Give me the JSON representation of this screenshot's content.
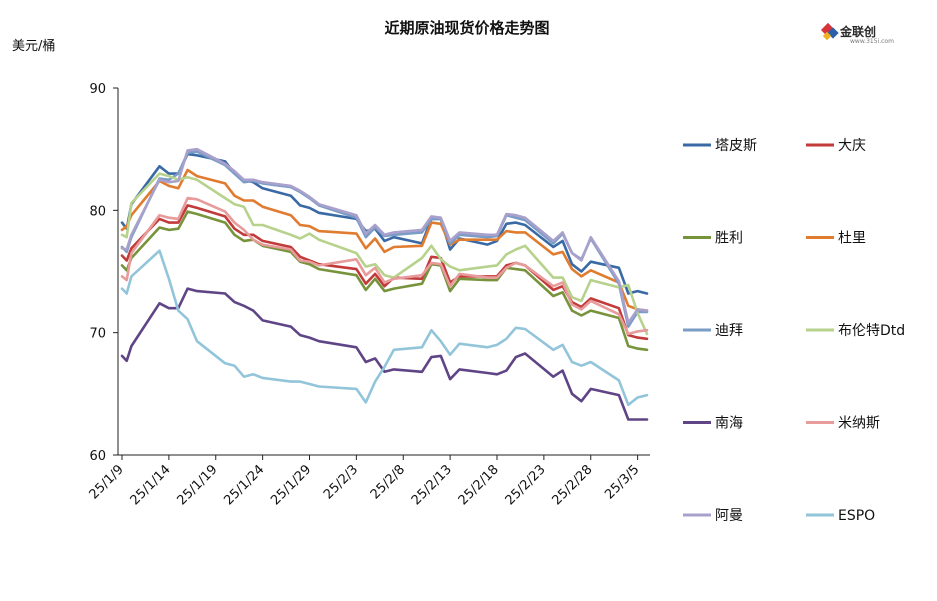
{
  "chart_data": {
    "type": "line",
    "title": "近期原油现货价格走势图",
    "ylabel": "美元/桶",
    "xlabel": "",
    "ylim": [
      60,
      90
    ],
    "yticks": [
      60,
      70,
      80,
      90
    ],
    "grid": false,
    "legend_position": "right",
    "x_tick_labels": [
      "25/1/9",
      "25/1/14",
      "25/1/19",
      "25/1/24",
      "25/1/29",
      "25/2/3",
      "25/2/8",
      "25/2/13",
      "25/2/18",
      "25/2/23",
      "25/2/28",
      "25/3/5"
    ],
    "x_tick_days": [
      0,
      5,
      10,
      15,
      20,
      25,
      30,
      35,
      40,
      45,
      50,
      55
    ],
    "x_days": [
      0,
      0.5,
      1,
      4,
      5,
      6,
      7,
      8,
      11,
      12,
      13,
      14,
      15,
      18,
      19,
      20,
      21,
      25,
      26,
      27,
      28,
      29,
      32,
      33,
      34,
      35,
      36,
      39,
      40,
      41,
      42,
      43,
      46,
      47,
      48,
      49,
      50,
      53,
      54,
      55,
      56
    ],
    "series": [
      {
        "name": "塔皮斯",
        "color": "#3a6aa6",
        "values": [
          79,
          78.5,
          80.5,
          83.6,
          83,
          83,
          84.6,
          84.5,
          84,
          83,
          82.5,
          82.3,
          81.8,
          81.2,
          80.4,
          80.2,
          79.8,
          79.3,
          78.3,
          78.5,
          77.5,
          77.8,
          77.3,
          79.3,
          79.3,
          76.8,
          77.7,
          77.2,
          77.5,
          78.9,
          79,
          78.8,
          77,
          77.5,
          75.6,
          75,
          75.8,
          75.3,
          73.2,
          73.4,
          73.2
        ]
      },
      {
        "name": "大庆",
        "color": "#c23a3a",
        "values": [
          76.3,
          75.9,
          76.9,
          79.3,
          79,
          79,
          80.4,
          80.2,
          79.5,
          78.5,
          78,
          78,
          77.5,
          77,
          76.2,
          75.9,
          75.6,
          75.2,
          74,
          74.8,
          73.8,
          74.5,
          74.4,
          76.2,
          76.1,
          74.1,
          74.6,
          74.6,
          74.6,
          75.5,
          75.7,
          75.5,
          73.5,
          73.8,
          72.5,
          72.1,
          72.8,
          72,
          69.8,
          69.6,
          69.5
        ]
      },
      {
        "name": "胜利",
        "color": "#77933c",
        "values": [
          75.5,
          75.1,
          76.1,
          78.6,
          78.4,
          78.5,
          79.9,
          79.7,
          79,
          78,
          77.5,
          77.6,
          77.1,
          76.6,
          75.8,
          75.6,
          75.2,
          74.7,
          73.5,
          74.4,
          73.4,
          73.6,
          74,
          75.6,
          75.5,
          73.4,
          74.4,
          74.3,
          74.3,
          75.3,
          75.2,
          75.1,
          73,
          73.3,
          71.8,
          71.4,
          71.8,
          71.2,
          68.9,
          68.7,
          68.6
        ]
      },
      {
        "name": "杜里",
        "color": "#e07c30",
        "values": [
          78.4,
          78.7,
          79.6,
          82.4,
          82,
          81.8,
          83.3,
          82.8,
          82.2,
          81.2,
          80.8,
          80.8,
          80.3,
          79.6,
          78.8,
          78.7,
          78.3,
          78.1,
          76.9,
          77.7,
          76.6,
          77,
          77.1,
          79,
          78.9,
          77.2,
          77.6,
          77.6,
          77.6,
          78.3,
          78.2,
          78.2,
          76.4,
          76.6,
          75.2,
          74.6,
          75.1,
          74.1,
          72.2,
          71.9,
          71.8
        ]
      },
      {
        "name": "迪拜",
        "color": "#7a9cc6",
        "values": [
          77,
          76.6,
          77.8,
          82.6,
          82.5,
          83,
          84.7,
          84.8,
          83.7,
          83,
          82.3,
          82.4,
          82.2,
          81.9,
          81.5,
          81,
          80.4,
          79.4,
          77.8,
          78.6,
          77.9,
          78,
          78.2,
          79.3,
          79.3,
          77.3,
          78,
          77.8,
          77.9,
          79.6,
          79.4,
          79.2,
          77.3,
          78.1,
          76.5,
          76,
          77.7,
          74,
          70.5,
          71.7,
          71.7
        ]
      },
      {
        "name": "布伦特Dtd",
        "color": "#b6d28c",
        "values": [
          78,
          77.8,
          80.6,
          83,
          82.8,
          82.5,
          82.7,
          82.5,
          81,
          80.5,
          80.3,
          78.8,
          78.8,
          78,
          77.7,
          78.1,
          77.6,
          76.5,
          75.4,
          75.6,
          74.7,
          74.5,
          76.1,
          77.1,
          76,
          75.4,
          75.1,
          75.4,
          75.5,
          76.4,
          76.8,
          77.1,
          74.5,
          74.5,
          72.9,
          72.6,
          74.3,
          73.7,
          73.9,
          71.6,
          69.9
        ]
      },
      {
        "name": "南海",
        "color": "#5f4586",
        "values": [
          68.1,
          67.7,
          68.9,
          72.4,
          72,
          72,
          73.6,
          73.4,
          73.2,
          72.5,
          72.2,
          71.8,
          71,
          70.5,
          69.8,
          69.6,
          69.3,
          68.8,
          67.6,
          67.9,
          66.8,
          67,
          66.8,
          68,
          68.1,
          66.2,
          67,
          66.7,
          66.6,
          66.9,
          68,
          68.3,
          66.4,
          66.9,
          65,
          64.4,
          65.4,
          64.9,
          62.9,
          62.9,
          62.9
        ]
      },
      {
        "name": "米纳斯",
        "color": "#e79b9b",
        "values": [
          74.6,
          74.3,
          76.5,
          79.6,
          79.4,
          79.3,
          81,
          80.9,
          79.9,
          79,
          78.4,
          77.6,
          77.2,
          76.8,
          75.9,
          75.8,
          75.5,
          76,
          74.7,
          75.3,
          74.1,
          74.4,
          74.7,
          75.7,
          75.6,
          73.8,
          74.8,
          74.5,
          74.5,
          75.3,
          75.7,
          75.5,
          73.8,
          74.1,
          72.3,
          71.9,
          72.6,
          71.5,
          69.9,
          70.1,
          70.2
        ]
      },
      {
        "name": "阿曼",
        "color": "#a9a0cc",
        "values": [
          76.9,
          76.8,
          78,
          82.5,
          82.3,
          82.4,
          84.9,
          85,
          83.8,
          83.2,
          82.5,
          82.5,
          82.3,
          82,
          81.6,
          81.1,
          80.5,
          79.6,
          78.1,
          78.8,
          78,
          78.2,
          78.4,
          79.5,
          79.4,
          77.5,
          78.2,
          78,
          78,
          79.7,
          79.6,
          79.4,
          77.5,
          78.2,
          76.5,
          75.9,
          77.8,
          74.2,
          70.8,
          71.9,
          71.8
        ]
      },
      {
        "name": "ESPO",
        "color": "#92c5da",
        "values": [
          73.6,
          73.2,
          74.6,
          76.7,
          74.4,
          71.8,
          71.1,
          69.3,
          67.5,
          67.3,
          66.4,
          66.6,
          66.3,
          66,
          66,
          65.8,
          65.6,
          65.4,
          64.3,
          66,
          67.2,
          68.6,
          68.8,
          70.2,
          69.3,
          68.2,
          69.1,
          68.8,
          69,
          69.5,
          70.4,
          70.3,
          68.6,
          69,
          67.6,
          67.3,
          67.6,
          66.1,
          64.1,
          64.7,
          64.9
        ]
      }
    ]
  },
  "logo": {
    "text": "金联创",
    "sub": "www.315i.com"
  }
}
